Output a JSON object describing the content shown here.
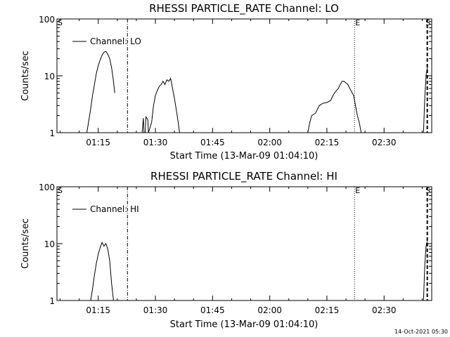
{
  "chart_data": [
    {
      "type": "line",
      "title": "RHESSI PARTICLE_RATE Channel: LO",
      "xlabel": "Start Time (13-Mar-09 01:04:10)",
      "ylabel": "Counts/sec",
      "y_scale": "log",
      "ylim": [
        1,
        100
      ],
      "xlim": [
        "01:04:10",
        "02:42:30"
      ],
      "x_ticks": [
        "01:15",
        "01:30",
        "01:45",
        "02:00",
        "02:15",
        "02:30"
      ],
      "y_ticks": [
        "1",
        "10",
        "100"
      ],
      "legend": "top-left",
      "series": [
        {
          "name": "Channel: LO",
          "x": [
            "01:12:00",
            "01:12:30",
            "01:13:00",
            "01:13:30",
            "01:14:00",
            "01:14:30",
            "01:15:00",
            "01:15:30",
            "01:16:00",
            "01:16:30",
            "01:17:00",
            "01:17:30",
            "01:18:00",
            "01:18:30",
            "01:19:00",
            "01:19:20",
            "01:26:30",
            "01:26:50",
            "01:27:00",
            "01:27:20",
            "01:27:30",
            "01:28:00",
            "01:28:10",
            "01:29:00",
            "01:29:30",
            "01:30:00",
            "01:30:30",
            "01:31:00",
            "01:31:30",
            "01:32:00",
            "01:32:30",
            "01:33:00",
            "01:33:30",
            "01:34:00",
            "01:34:30",
            "01:35:00",
            "01:35:30",
            "01:36:00",
            "01:36:20",
            "02:10:00",
            "02:10:30",
            "02:11:00",
            "02:12:00",
            "02:13:00",
            "02:14:00",
            "02:15:00",
            "02:16:00",
            "02:16:30",
            "02:17:00",
            "02:17:30",
            "02:18:00",
            "02:18:30",
            "02:19:00",
            "02:19:30",
            "02:20:00",
            "02:20:30",
            "02:21:00",
            "02:21:30",
            "02:22:00",
            "02:22:30",
            "02:23:00",
            "02:23:30",
            "02:24:00",
            "02:40:20",
            "02:40:40",
            "02:41:00",
            "02:41:20"
          ],
          "values": [
            1.0,
            1.6,
            2.6,
            4.5,
            7,
            11,
            15,
            19,
            23,
            26,
            27,
            24,
            20,
            14,
            8,
            5,
            1.0,
            1.8,
            1.0,
            1.0,
            1.9,
            1.7,
            1.0,
            1.5,
            3,
            4.5,
            5.5,
            6.5,
            7,
            8,
            7,
            8.5,
            8,
            9,
            6,
            4,
            2.5,
            1.5,
            1.0,
            1.0,
            1.5,
            2,
            2.2,
            3,
            3.3,
            3.4,
            3.7,
            4.4,
            5,
            5.5,
            6,
            7,
            8,
            8,
            7.5,
            7,
            6,
            5.2,
            4.5,
            3,
            2,
            1.5,
            1.0,
            1.0,
            4,
            10,
            14
          ]
        }
      ],
      "markers": [
        {
          "label": "S",
          "time": "01:04:10",
          "style": "solid"
        },
        {
          "label": "",
          "time": "01:22:40",
          "style": "dashdot"
        },
        {
          "label": "E",
          "time": "02:22:15",
          "style": "dotted"
        },
        {
          "label": "S",
          "time": "02:41:20",
          "style": "dashed"
        }
      ]
    },
    {
      "type": "line",
      "title": "RHESSI PARTICLE_RATE Channel: HI",
      "xlabel": "Start Time (13-Mar-09 01:04:10)",
      "ylabel": "Counts/sec",
      "y_scale": "log",
      "ylim": [
        1,
        100
      ],
      "xlim": [
        "01:04:10",
        "02:42:30"
      ],
      "x_ticks": [
        "01:15",
        "01:30",
        "01:45",
        "02:00",
        "02:15",
        "02:30"
      ],
      "y_ticks": [
        "1",
        "10",
        "100"
      ],
      "legend": "top-left",
      "series": [
        {
          "name": "Channel: HI",
          "x": [
            "01:13:00",
            "01:13:30",
            "01:14:00",
            "01:14:30",
            "01:15:00",
            "01:15:30",
            "01:16:00",
            "01:16:30",
            "01:17:00",
            "01:17:30",
            "01:18:00",
            "01:18:30",
            "01:19:00",
            "02:40:20",
            "02:40:40",
            "02:41:00",
            "02:41:20"
          ],
          "values": [
            1.0,
            1.6,
            2.8,
            4.5,
            6.5,
            8.5,
            10.5,
            9,
            10,
            8,
            5,
            2,
            1.0,
            1.0,
            4,
            9,
            11
          ]
        }
      ],
      "markers": [
        {
          "label": "S",
          "time": "01:04:10",
          "style": "solid"
        },
        {
          "label": "",
          "time": "01:22:40",
          "style": "dashdot"
        },
        {
          "label": "E",
          "time": "02:22:15",
          "style": "dotted"
        },
        {
          "label": "S",
          "time": "02:41:20",
          "style": "dashed"
        }
      ]
    }
  ],
  "footer": {
    "timestamp": "14-Oct-2021 05:30"
  }
}
